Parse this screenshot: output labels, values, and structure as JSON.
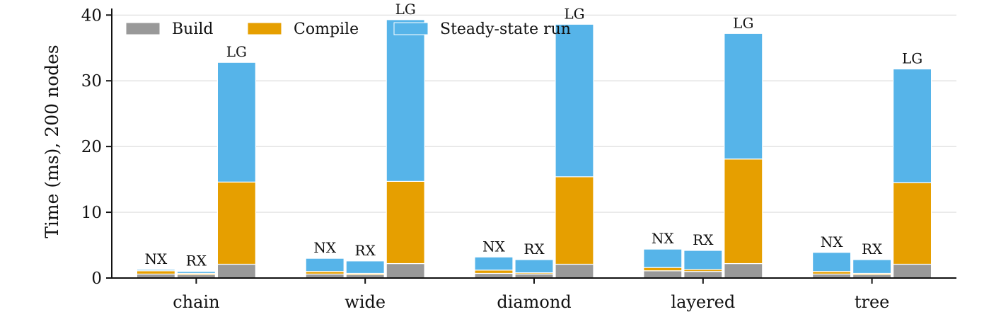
{
  "chart_data": {
    "type": "bar",
    "stacked": true,
    "categories": [
      "chain",
      "wide",
      "diamond",
      "layered",
      "tree"
    ],
    "groups": [
      "NX",
      "RX",
      "LG"
    ],
    "ylabel": "Time (ms), 200 nodes",
    "xlabel": "",
    "title": "",
    "ylim": [
      0,
      41
    ],
    "yticks": [
      0,
      10,
      20,
      30,
      40
    ],
    "grid": "horizontal",
    "legend_position": "top-left",
    "series": [
      {
        "name": "Build",
        "color": "#999999",
        "values": {
          "NX": [
            0.6,
            0.6,
            0.7,
            1.1,
            0.6
          ],
          "RX": [
            0.5,
            0.5,
            0.6,
            1.0,
            0.5
          ],
          "LG": [
            2.1,
            2.2,
            2.1,
            2.2,
            2.1
          ]
        }
      },
      {
        "name": "Compile",
        "color": "#E69F00",
        "values": {
          "NX": [
            0.5,
            0.4,
            0.5,
            0.5,
            0.4
          ],
          "RX": [
            0.2,
            0.2,
            0.2,
            0.3,
            0.2
          ],
          "LG": [
            12.5,
            12.5,
            13.3,
            15.9,
            12.4
          ]
        }
      },
      {
        "name": "Steady-state run",
        "color": "#56B4E9",
        "values": {
          "NX": [
            0.2,
            2.0,
            2.0,
            2.8,
            2.9
          ],
          "RX": [
            0.3,
            1.9,
            2.0,
            2.9,
            2.1
          ],
          "LG": [
            18.2,
            24.6,
            23.2,
            19.1,
            17.3
          ]
        }
      }
    ]
  }
}
